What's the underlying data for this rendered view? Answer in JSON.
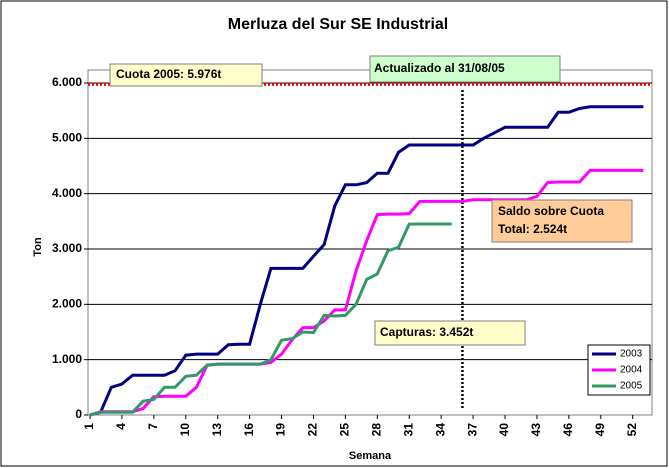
{
  "chart_data": {
    "type": "line",
    "title": "Merluza del Sur SE Industrial",
    "y_label": "Ton",
    "x_label": "Semana",
    "x": [
      1,
      2,
      3,
      4,
      5,
      6,
      7,
      8,
      9,
      10,
      11,
      12,
      13,
      14,
      15,
      16,
      17,
      18,
      19,
      20,
      21,
      22,
      23,
      24,
      25,
      26,
      27,
      28,
      29,
      30,
      31,
      32,
      33,
      34,
      35,
      36,
      37,
      38,
      39,
      40,
      41,
      42,
      43,
      44,
      45,
      46,
      47,
      48,
      49,
      50,
      51,
      52,
      53
    ],
    "xlim": [
      1,
      54
    ],
    "xticks": [
      1,
      4,
      7,
      10,
      13,
      16,
      19,
      22,
      25,
      28,
      31,
      34,
      37,
      40,
      43,
      46,
      49,
      52
    ],
    "ylim": [
      0,
      6000
    ],
    "yticks": [
      0,
      {
        "value": 1000,
        "label": "1.000"
      },
      {
        "value": 2000,
        "label": "2.000"
      },
      {
        "value": 3000,
        "label": "3.000"
      },
      {
        "value": 4000,
        "label": "4.000"
      },
      {
        "value": 5000,
        "label": "5.000"
      },
      {
        "value": 6000,
        "label": "6.000"
      }
    ],
    "grid": true,
    "legend": "lower right",
    "series": [
      {
        "name": "2003",
        "color": "#000080",
        "values": [
          0,
          50,
          500,
          560,
          720,
          720,
          720,
          720,
          800,
          1080,
          1100,
          1100,
          1100,
          1270,
          1280,
          1280,
          2000,
          2650,
          2650,
          2650,
          2650,
          2870,
          3080,
          3780,
          4160,
          4160,
          4200,
          4370,
          4370,
          4750,
          4880,
          4880,
          4880,
          4880,
          4880,
          4880,
          4880,
          5000,
          5100,
          5200,
          5200,
          5200,
          5200,
          5200,
          5470,
          5470,
          5540,
          5570,
          5570,
          5570,
          5570,
          5570,
          5570
        ]
      },
      {
        "name": "2004",
        "color": "#ff00ff",
        "values": [
          0,
          60,
          60,
          60,
          60,
          120,
          330,
          340,
          340,
          340,
          500,
          900,
          920,
          920,
          920,
          920,
          920,
          950,
          1100,
          1360,
          1580,
          1580,
          1700,
          1900,
          1900,
          2600,
          3150,
          3620,
          3630,
          3630,
          3640,
          3860,
          3860,
          3860,
          3860,
          3860,
          3890,
          3890,
          3890,
          3890,
          3890,
          3890,
          3950,
          4200,
          4210,
          4210,
          4210,
          4420,
          4420,
          4420,
          4420,
          4420,
          4420
        ]
      },
      {
        "name": "2005",
        "color": "#339966",
        "values": [
          0,
          50,
          50,
          50,
          50,
          250,
          280,
          500,
          500,
          700,
          720,
          900,
          920,
          920,
          920,
          920,
          920,
          1000,
          1350,
          1380,
          1500,
          1490,
          1800,
          1790,
          1800,
          2000,
          2450,
          2550,
          2970,
          3030,
          3450,
          3452,
          3452,
          3452,
          3452,
          null,
          null,
          null,
          null,
          null,
          null,
          null,
          null,
          null,
          null,
          null,
          null,
          null,
          null,
          null,
          null,
          null,
          null
        ]
      }
    ],
    "quota_line": {
      "value": 5976,
      "color": "#ff0000"
    },
    "update_line": {
      "x": 36,
      "color": "#000000"
    },
    "annotations": [
      "Cuota 2005: 5.976t",
      "Actualizado al 31/08/05",
      "Saldo sobre Cuota",
      "Total: 2.524t",
      "Capturas: 3.452t"
    ]
  }
}
